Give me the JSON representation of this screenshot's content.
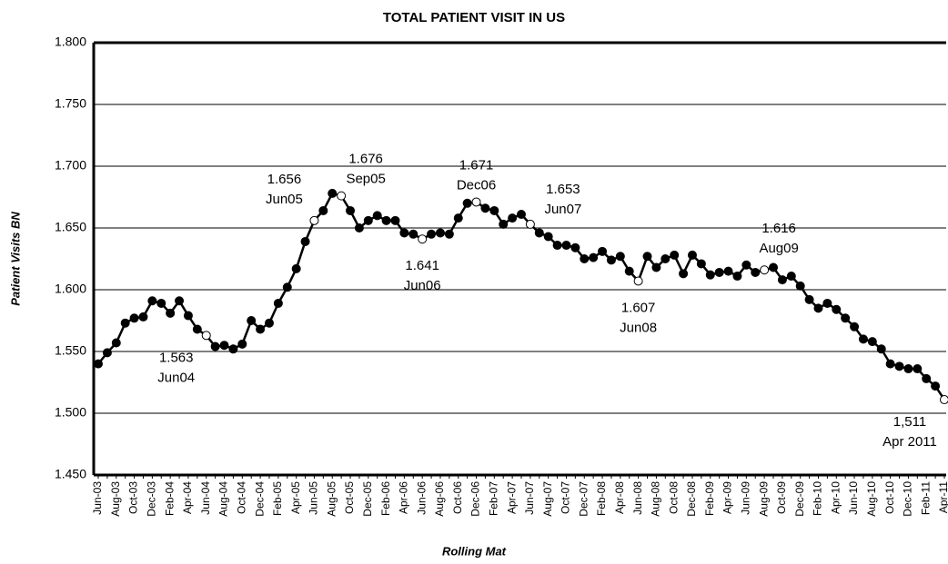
{
  "chart_data": {
    "type": "line",
    "title": "TOTAL PATIENT VISIT IN US",
    "x_label": "Rolling Mat",
    "y_label": "Patient Visits BN",
    "categories": [
      "Jun-03",
      null,
      "Aug-03",
      null,
      "Oct-03",
      null,
      "Dec-03",
      null,
      "Feb-04",
      null,
      "Apr-04",
      null,
      "Jun-04",
      null,
      "Aug-04",
      null,
      "Oct-04",
      null,
      "Dec-04",
      null,
      "Feb-05",
      null,
      "Apr-05",
      null,
      "Jun-05",
      null,
      "Aug-05",
      null,
      "Oct-05",
      null,
      "Dec-05",
      null,
      "Feb-06",
      null,
      "Apr-06",
      null,
      "Jun-06",
      null,
      "Aug-06",
      null,
      "Oct-06",
      null,
      "Dec-06",
      null,
      "Feb-07",
      null,
      "Apr-07",
      null,
      "Jun-07",
      null,
      "Aug-07",
      null,
      "Oct-07",
      null,
      "Dec-07",
      null,
      "Feb-08",
      null,
      "Apr-08",
      null,
      "Jun-08",
      null,
      "Aug-08",
      null,
      "Oct-08",
      null,
      "Dec-08",
      null,
      "Feb-09",
      null,
      "Apr-09",
      null,
      "Jun-09",
      null,
      "Aug-09",
      null,
      "Oct-09",
      null,
      "Dec-09",
      null,
      "Feb-10",
      null,
      "Apr-10",
      null,
      "Jun-10",
      null,
      "Aug-10",
      null,
      "Oct-10",
      null,
      "Dec-10",
      null,
      "Feb-11",
      null,
      "Apr-11"
    ],
    "series": [
      {
        "name": "Patient Visits",
        "color": "#000000",
        "values": [
          1.54,
          1.549,
          1.557,
          1.573,
          1.577,
          1.578,
          1.591,
          1.589,
          1.581,
          1.591,
          1.579,
          1.568,
          1.563,
          1.554,
          1.555,
          1.552,
          1.556,
          1.575,
          1.568,
          1.573,
          1.589,
          1.602,
          1.617,
          1.639,
          1.656,
          1.664,
          1.678,
          1.676,
          1.664,
          1.65,
          1.656,
          1.66,
          1.656,
          1.656,
          1.646,
          1.645,
          1.641,
          1.645,
          1.646,
          1.645,
          1.658,
          1.67,
          1.671,
          1.666,
          1.664,
          1.653,
          1.658,
          1.661,
          1.653,
          1.646,
          1.643,
          1.636,
          1.636,
          1.634,
          1.625,
          1.626,
          1.631,
          1.624,
          1.627,
          1.615,
          1.607,
          1.627,
          1.618,
          1.625,
          1.628,
          1.613,
          1.628,
          1.621,
          1.612,
          1.614,
          1.615,
          1.611,
          1.62,
          1.614,
          1.616,
          1.618,
          1.608,
          1.611,
          1.603,
          1.592,
          1.585,
          1.589,
          1.584,
          1.577,
          1.57,
          1.56,
          1.558,
          1.552,
          1.54,
          1.538,
          1.536,
          1.536,
          1.528,
          1.522,
          1.511
        ]
      }
    ],
    "ylim": [
      1.45,
      1.8
    ],
    "yticks": [
      {
        "value": 1.45,
        "label": "1.450"
      },
      {
        "value": 1.5,
        "label": "1.500"
      },
      {
        "value": 1.55,
        "label": "1.550"
      },
      {
        "value": 1.6,
        "label": "1.600"
      },
      {
        "value": 1.65,
        "label": "1.650"
      },
      {
        "value": 1.7,
        "label": "1.700"
      },
      {
        "value": 1.75,
        "label": "1.750"
      },
      {
        "value": 1.8,
        "label": "1.800"
      }
    ],
    "grid": true,
    "annotations": [
      {
        "index": 12,
        "label": "1.563",
        "date": "Jun04"
      },
      {
        "index": 24,
        "label": "1.656",
        "date": "Jun05"
      },
      {
        "index": 27,
        "label": "1.676",
        "date": "Sep05"
      },
      {
        "index": 36,
        "label": "1.641",
        "date": "Jun06"
      },
      {
        "index": 42,
        "label": "1.671",
        "date": "Dec06"
      },
      {
        "index": 48,
        "label": "1.653",
        "date": "Jun07"
      },
      {
        "index": 60,
        "label": "1.607",
        "date": "Jun08"
      },
      {
        "index": 74,
        "label": "1.616",
        "date": "Aug09"
      },
      {
        "index": 94,
        "label": "1,511",
        "date": "Apr 2011"
      }
    ]
  }
}
